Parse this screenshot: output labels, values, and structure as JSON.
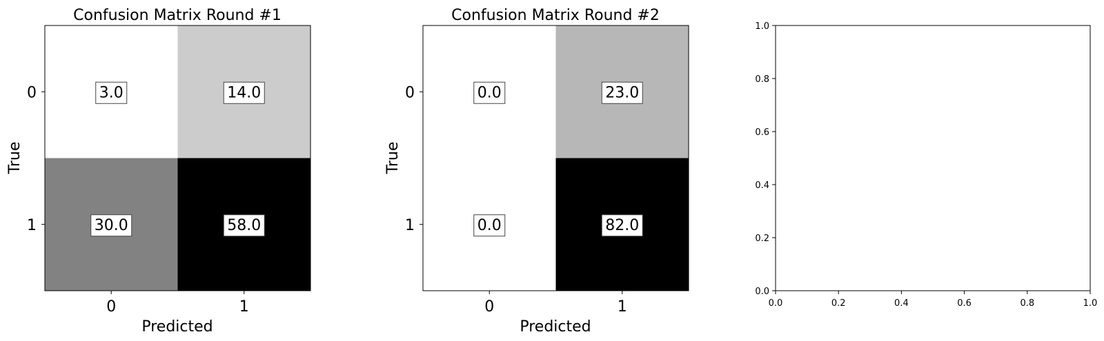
{
  "chart_data": [
    {
      "type": "heatmap",
      "title": "Confusion Matrix Round #1",
      "xlabel": "Predicted",
      "ylabel": "True",
      "x_tick_labels": [
        "0",
        "1"
      ],
      "y_tick_labels": [
        "0",
        "1"
      ],
      "cells": [
        {
          "true": "0",
          "predicted": "0",
          "value": 3.0,
          "label": "3.0"
        },
        {
          "true": "0",
          "predicted": "1",
          "value": 14.0,
          "label": "14.0"
        },
        {
          "true": "1",
          "predicted": "0",
          "value": 30.0,
          "label": "30.0"
        },
        {
          "true": "1",
          "predicted": "1",
          "value": 58.0,
          "label": "58.0"
        }
      ],
      "colormap": "Greys",
      "value_range": [
        3.0,
        58.0
      ]
    },
    {
      "type": "heatmap",
      "title": "Confusion Matrix Round #2",
      "xlabel": "Predicted",
      "ylabel": "True",
      "x_tick_labels": [
        "0",
        "1"
      ],
      "y_tick_labels": [
        "0",
        "1"
      ],
      "cells": [
        {
          "true": "0",
          "predicted": "0",
          "value": 0.0,
          "label": "0.0"
        },
        {
          "true": "0",
          "predicted": "1",
          "value": 23.0,
          "label": "23.0"
        },
        {
          "true": "1",
          "predicted": "0",
          "value": 0.0,
          "label": "0.0"
        },
        {
          "true": "1",
          "predicted": "1",
          "value": 82.0,
          "label": "82.0"
        }
      ],
      "colormap": "Greys",
      "value_range": [
        0.0,
        82.0
      ]
    },
    {
      "type": "scatter",
      "title": "",
      "xlabel": "",
      "ylabel": "",
      "xlim": [
        0.0,
        1.0
      ],
      "ylim": [
        0.0,
        1.0
      ],
      "x_ticks": [
        "0.0",
        "0.2",
        "0.4",
        "0.6",
        "0.8",
        "1.0"
      ],
      "y_ticks": [
        "0.0",
        "0.2",
        "0.4",
        "0.6",
        "0.8",
        "1.0"
      ],
      "series": []
    }
  ]
}
